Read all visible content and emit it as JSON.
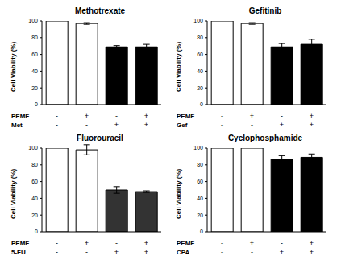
{
  "chart_data": [
    {
      "type": "bar",
      "title": "Methotrexate",
      "categories": [
        null,
        null,
        null,
        null
      ],
      "values": [
        100,
        97,
        69,
        69
      ],
      "errors": [
        0,
        1,
        1.5,
        3
      ],
      "colors": [
        "#ffffff",
        "#ffffff",
        "#000000",
        "#000000"
      ],
      "ylabel": "Cell Viability (%)",
      "ylim": [
        0,
        100
      ],
      "yticks": [
        0,
        20,
        40,
        60,
        80,
        100
      ],
      "treatments": [
        {
          "name": "PEMF",
          "values": [
            "-",
            "+",
            "-",
            "+"
          ]
        },
        {
          "name": "Met",
          "values": [
            "-",
            "-",
            "+",
            "+"
          ]
        }
      ]
    },
    {
      "type": "bar",
      "title": "Gefitinib",
      "categories": [
        null,
        null,
        null,
        null
      ],
      "values": [
        100,
        97,
        69,
        72
      ],
      "errors": [
        0,
        1,
        4,
        6
      ],
      "colors": [
        "#ffffff",
        "#ffffff",
        "#000000",
        "#000000"
      ],
      "ylabel": "Cell Viability (%)",
      "ylim": [
        0,
        100
      ],
      "yticks": [
        0,
        20,
        40,
        60,
        80,
        100
      ],
      "treatments": [
        {
          "name": "PEMF",
          "values": [
            "-",
            "+",
            "-",
            "+"
          ]
        },
        {
          "name": "Gef",
          "values": [
            "-",
            "-",
            "+",
            "+"
          ]
        }
      ]
    },
    {
      "type": "bar",
      "title": "Fluorouracil",
      "categories": [
        null,
        null,
        null,
        null
      ],
      "values": [
        100,
        98,
        50,
        48
      ],
      "errors": [
        0,
        6,
        4,
        1
      ],
      "colors": [
        "#ffffff",
        "#ffffff",
        "#333333",
        "#333333"
      ],
      "ylabel": "Cell Viability (%)",
      "ylim": [
        0,
        100
      ],
      "yticks": [
        0,
        20,
        40,
        60,
        80,
        100
      ],
      "treatments": [
        {
          "name": "PEMF",
          "values": [
            "-",
            "+",
            "-",
            "+"
          ]
        },
        {
          "name": "5-FU",
          "values": [
            "-",
            "-",
            "+",
            "+"
          ]
        }
      ]
    },
    {
      "type": "bar",
      "title": "Cyclophosphamide",
      "categories": [
        null,
        null,
        null,
        null
      ],
      "values": [
        100,
        100,
        87,
        89
      ],
      "errors": [
        0,
        0,
        4,
        4
      ],
      "colors": [
        "#ffffff",
        "#ffffff",
        "#000000",
        "#000000"
      ],
      "ylabel": "Cell Viability (%)",
      "ylim": [
        0,
        100
      ],
      "yticks": [
        0,
        20,
        40,
        60,
        80,
        100
      ],
      "treatments": [
        {
          "name": "PEMF",
          "values": [
            "-",
            "+",
            "-",
            "+"
          ]
        },
        {
          "name": "CPA",
          "values": [
            "-",
            "-",
            "+",
            "+"
          ]
        }
      ]
    }
  ]
}
